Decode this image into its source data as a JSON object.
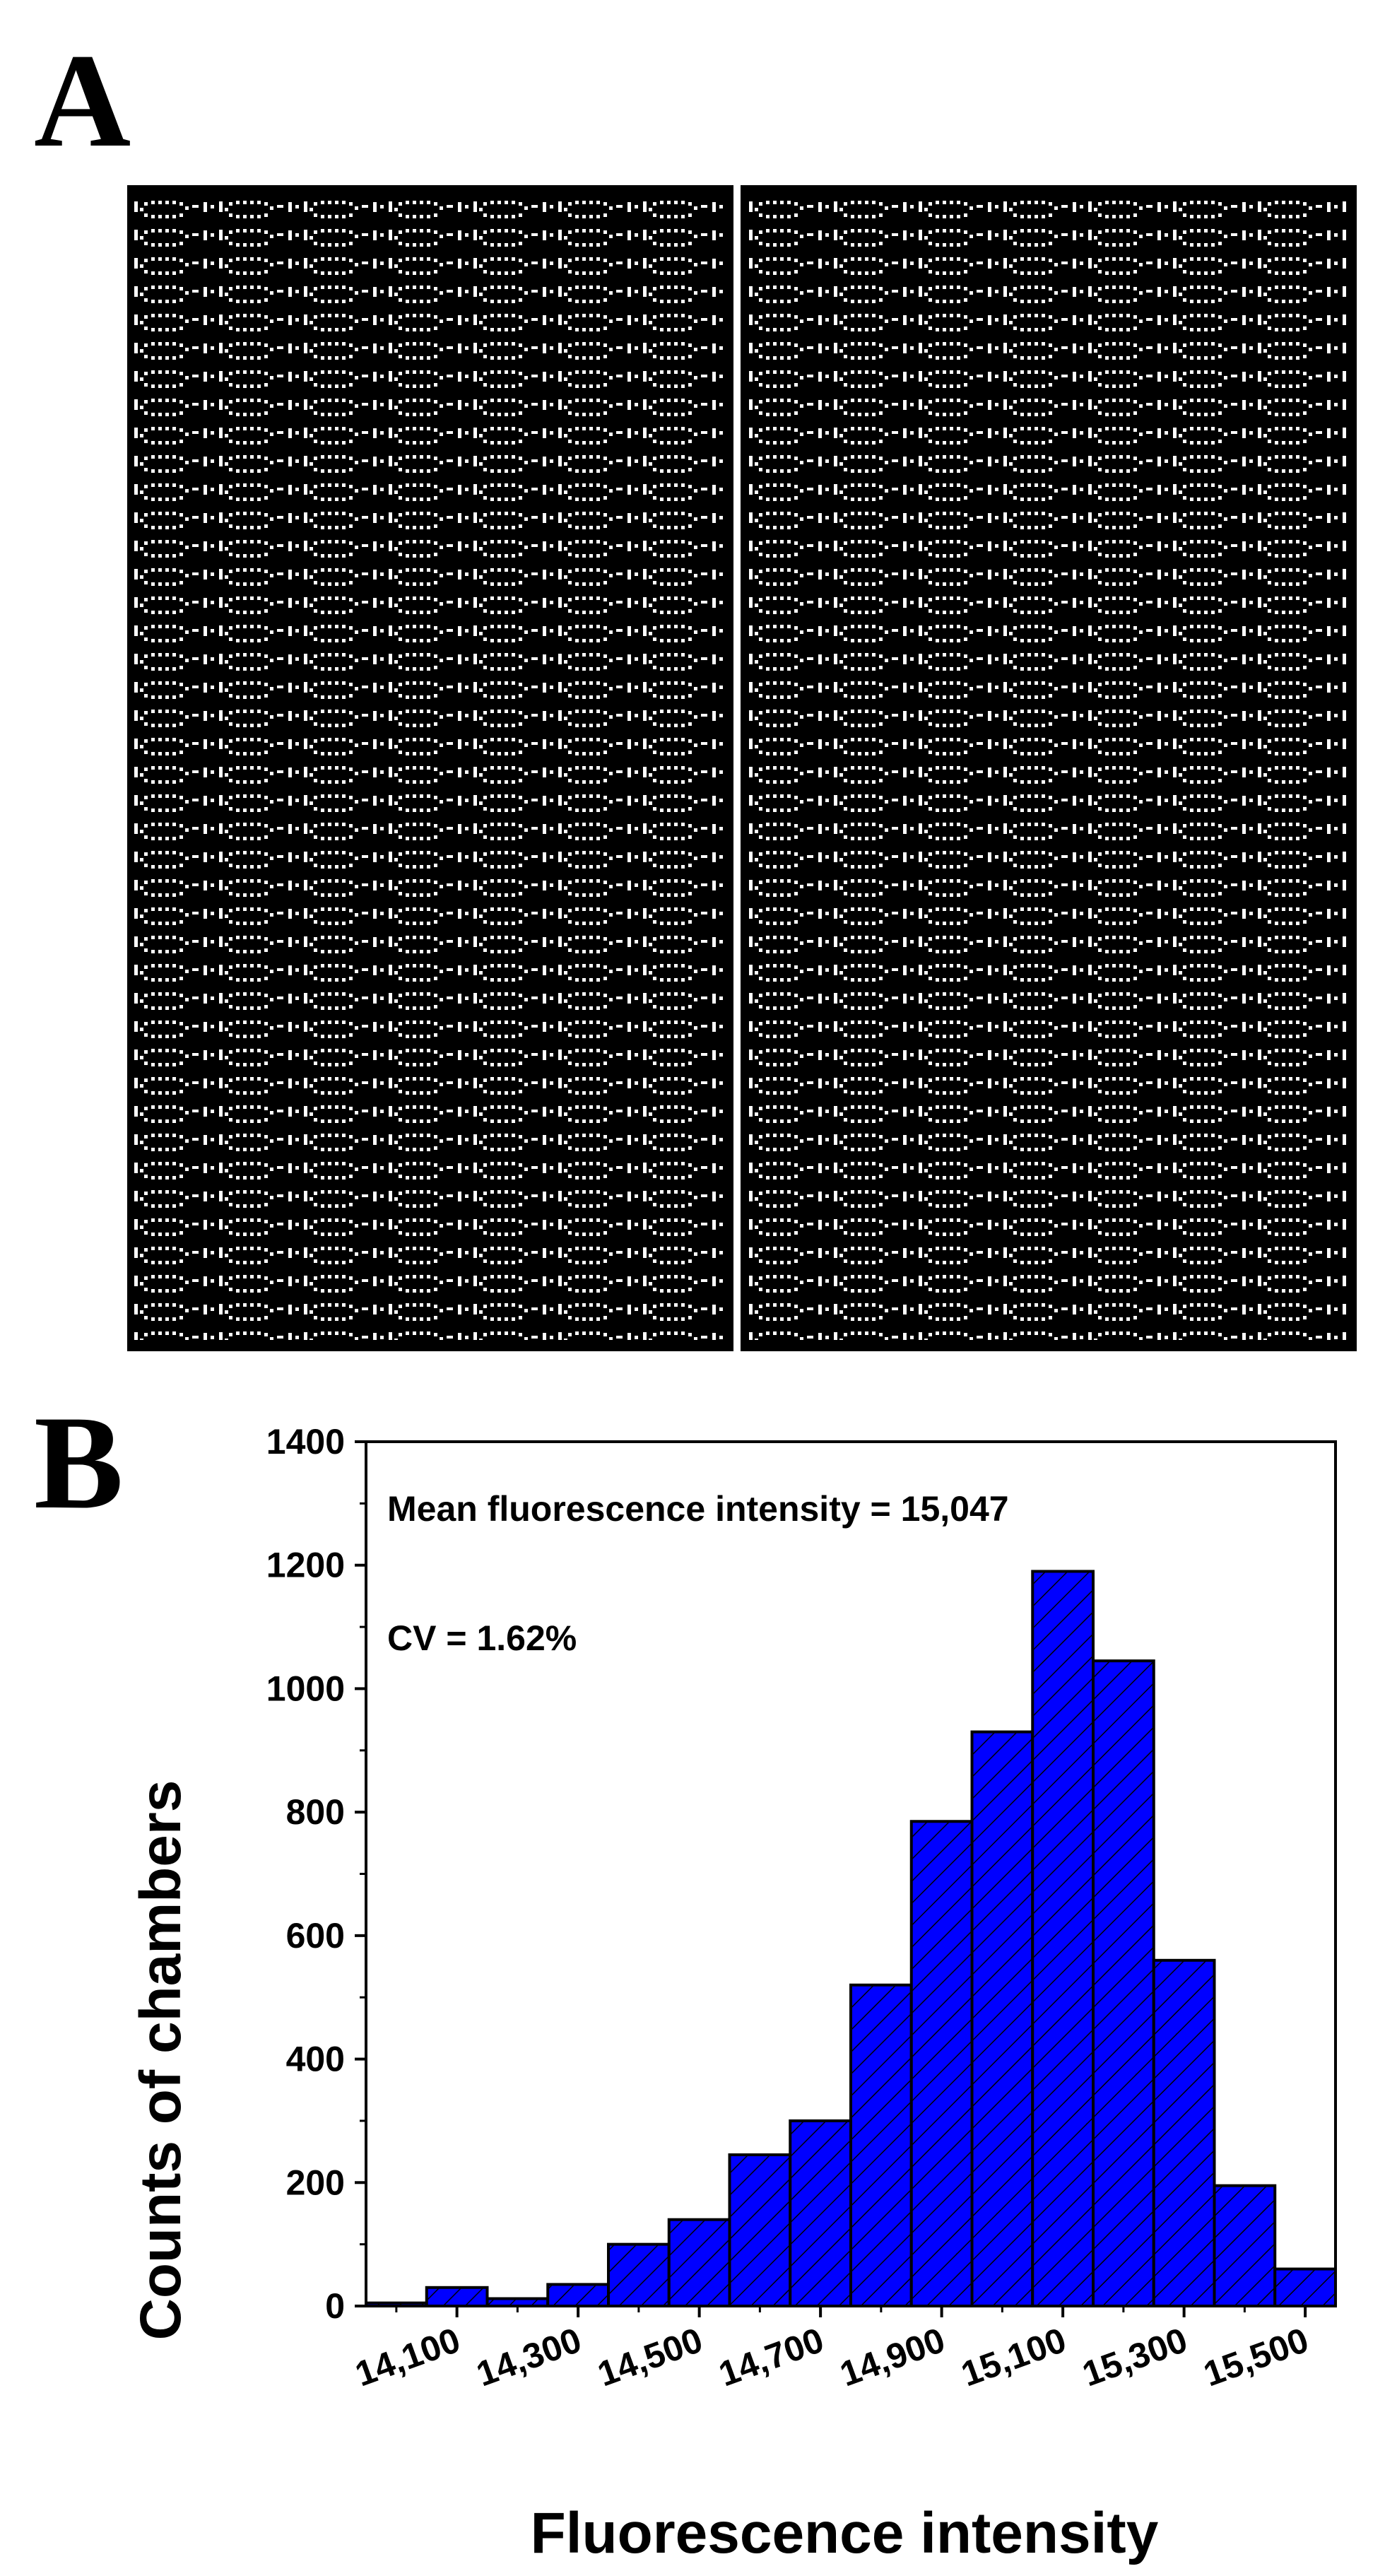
{
  "panels": {
    "a_label": "A",
    "b_label": "B"
  },
  "colors": {
    "bar_fill": "#0000ff",
    "bar_edge": "#000000",
    "hatch": "#000000",
    "micrograph_bg": "#000000",
    "wells": "#ffffff"
  },
  "chart_data": {
    "type": "bar",
    "title": "",
    "xlabel": "Fluorescence intensity",
    "ylabel": "Counts of chambers",
    "annotations": [
      "Mean fluorescence intensity = 15,047",
      "CV = 1.62%"
    ],
    "ylim": [
      0,
      1400
    ],
    "yticks": [
      0,
      200,
      400,
      600,
      800,
      1000,
      1200,
      1400
    ],
    "ytick_labels": [
      "0",
      "200",
      "400",
      "600",
      "800",
      "1000",
      "1200",
      "1400"
    ],
    "xlim": [
      13950,
      15550
    ],
    "xticks": [
      14100,
      14300,
      14500,
      14700,
      14900,
      15100,
      15300,
      15500
    ],
    "xtick_labels": [
      "14,100",
      "14,300",
      "14,500",
      "14,700",
      "14,900",
      "15,100",
      "15,300",
      "15,500"
    ],
    "bin_width": 100,
    "bins": [
      14000,
      14100,
      14200,
      14300,
      14400,
      14500,
      14600,
      14700,
      14800,
      14900,
      15000,
      15100,
      15200,
      15300,
      15400,
      15500
    ],
    "values": [
      5,
      30,
      12,
      35,
      100,
      140,
      245,
      300,
      520,
      785,
      930,
      1190,
      1045,
      560,
      195,
      60
    ],
    "hatch": "diagonal",
    "grid": false
  }
}
